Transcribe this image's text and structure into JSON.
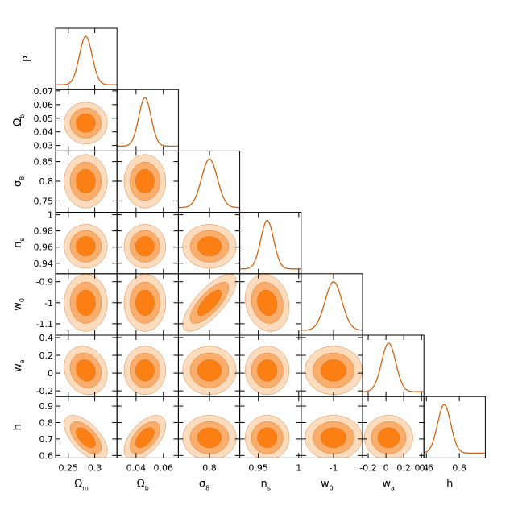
{
  "chart_data": {
    "type": "corner",
    "diagonal_ylabel": "P",
    "params": [
      {
        "symbol": "Ω",
        "sub": "m",
        "lim": [
          0.226,
          0.342
        ],
        "xticks": [
          0.25,
          0.3
        ],
        "mean": 0.283,
        "sigma": 0.012
      },
      {
        "symbol": "Ω",
        "sub": "b",
        "lim": [
          0.026,
          0.071
        ],
        "xticks": [
          0.04,
          0.06
        ],
        "yticks": [
          0.03,
          0.04,
          0.05,
          0.06,
          0.07
        ],
        "mean": 0.0465,
        "sigma": 0.0045
      },
      {
        "symbol": "σ",
        "sub": "8",
        "lim": [
          0.721,
          0.877
        ],
        "xticks": [
          0.8
        ],
        "yticks": [
          0.75,
          0.8,
          0.85
        ],
        "mean": 0.8,
        "sigma": 0.02
      },
      {
        "symbol": "n",
        "sub": "s",
        "lim": [
          0.927,
          1.003
        ],
        "xticks": [
          0.95,
          1
        ],
        "yticks": [
          0.94,
          0.96,
          0.98,
          1
        ],
        "mean": 0.961,
        "sigma": 0.008
      },
      {
        "symbol": "w",
        "sub": "0",
        "lim": [
          -1.154,
          -0.862
        ],
        "xticks": [
          -1
        ],
        "yticks": [
          -1.1,
          -1,
          -0.9
        ],
        "mean": -1.0,
        "sigma": 0.04
      },
      {
        "symbol": "w",
        "sub": "a",
        "lim": [
          -0.264,
          0.427
        ],
        "xticks": [
          -0.2,
          0,
          0.2,
          0.4
        ],
        "yticks": [
          -0.2,
          0,
          0.2,
          0.4
        ],
        "mean": 0.03,
        "sigma": 0.08
      },
      {
        "symbol": "h",
        "lim": [
          0.585,
          0.958
        ],
        "xticks": [
          0.6,
          0.8
        ],
        "yticks": [
          0.6,
          0.7,
          0.8,
          0.9
        ],
        "mean": 0.708,
        "sigma": 0.04
      }
    ],
    "correlations": [
      {
        "x": 0,
        "y": 6,
        "rho": -0.6
      },
      {
        "x": 1,
        "y": 6,
        "rho": 0.55
      },
      {
        "x": 2,
        "y": 4,
        "rho": 0.75
      },
      {
        "x": 0,
        "y": 5,
        "rho": -0.15
      },
      {
        "x": 3,
        "y": 4,
        "rho": -0.15
      }
    ],
    "contours": [
      {
        "sigma_scale": 3.4,
        "color": "#fddcbd"
      },
      {
        "sigma_scale": 2.45,
        "color": "#fbae6c"
      },
      {
        "sigma_scale": 1.52,
        "color": "#fb7f12"
      }
    ],
    "curve_color": "#d5620f"
  }
}
